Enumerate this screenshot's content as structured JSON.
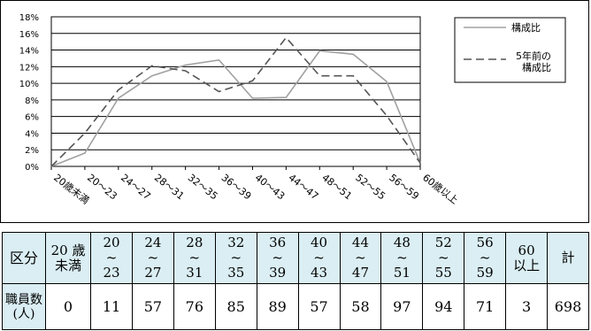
{
  "chart_data": {
    "type": "line",
    "title": "",
    "xlabel": "",
    "ylabel": "",
    "categories": [
      "20歳未満",
      "20～23",
      "24～27",
      "28～31",
      "32～35",
      "36～39",
      "40～43",
      "44～47",
      "48～51",
      "52～55",
      "56～59",
      "60歳以上"
    ],
    "series": [
      {
        "name": "構成比",
        "values": [
          0,
          1.6,
          8.2,
          10.9,
          12.2,
          12.8,
          8.2,
          8.3,
          13.9,
          13.5,
          10.2,
          0.4
        ],
        "color": "#a0a0a0",
        "dash": "solid"
      },
      {
        "name": "5年前の構成比",
        "values": [
          0,
          4.0,
          9.2,
          12.1,
          11.5,
          9.0,
          10.3,
          15.5,
          10.9,
          10.9,
          6.1,
          0.4
        ],
        "color": "#555555",
        "dash": "dashed"
      }
    ],
    "ylim": [
      0,
      18
    ],
    "yticks": [
      "0%",
      "2%",
      "4%",
      "6%",
      "8%",
      "10%",
      "12%",
      "14%",
      "16%",
      "18%"
    ],
    "grid": true,
    "legend_position": "top-right"
  },
  "table": {
    "header": [
      [
        "区分"
      ],
      [
        "20 歳",
        "未満"
      ],
      [
        "20",
        "~",
        "23"
      ],
      [
        "24",
        "~",
        "27"
      ],
      [
        "28",
        "~",
        "31"
      ],
      [
        "32",
        "~",
        "35"
      ],
      [
        "36",
        "~",
        "39"
      ],
      [
        "40",
        "~",
        "43"
      ],
      [
        "44",
        "~",
        "47"
      ],
      [
        "48",
        "~",
        "51"
      ],
      [
        "52",
        "~",
        "55"
      ],
      [
        "56",
        "~",
        "59"
      ],
      [
        "60",
        "以上"
      ],
      [
        "計"
      ]
    ],
    "row_label": [
      "職員数",
      "(人)"
    ],
    "values": [
      "0",
      "11",
      "57",
      "76",
      "85",
      "89",
      "57",
      "58",
      "97",
      "94",
      "71",
      "3",
      "698"
    ]
  }
}
